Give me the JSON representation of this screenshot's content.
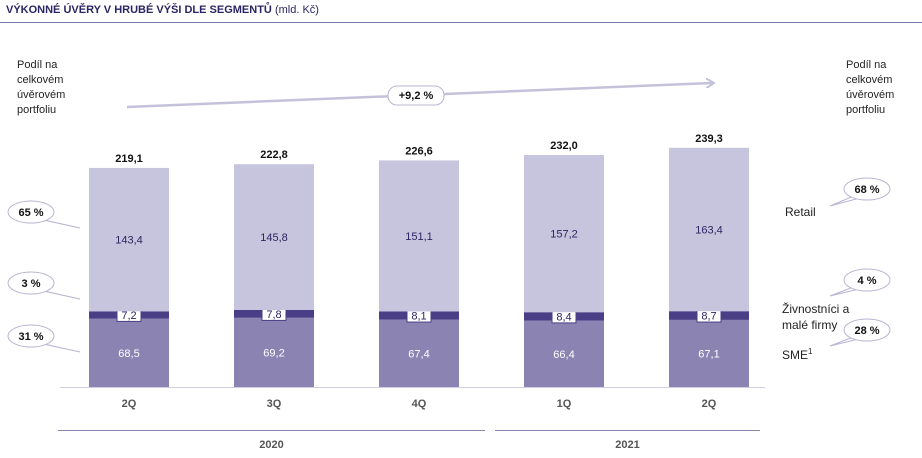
{
  "title": {
    "main": "VÝKONNÉ ÚVĚRY V HRUBÉ VÝŠI DLE SEGMENTŮ",
    "unit": "(mld. Kč)"
  },
  "side_note_left": [
    "Podíl na",
    "celkovém",
    "úvěrovém",
    "portfoliu"
  ],
  "side_note_right": [
    "Podíl na",
    "celkovém",
    "úvěrovém",
    "portfoliu"
  ],
  "growth_label": "+9,2 %",
  "segment_labels": {
    "retail": "Retail",
    "small": [
      "Živnostníci a",
      "malé firmy"
    ],
    "sme": "SME",
    "sme_sup": "1"
  },
  "share_bubbles_left": [
    "65 %",
    "3 %",
    "31 %"
  ],
  "share_bubbles_right": [
    "68 %",
    "4 %",
    "28 %"
  ],
  "colors": {
    "retail": "#c7c4dd",
    "small": "#4a3f86",
    "sme": "#8b84b3",
    "text": "#2b2563",
    "arrow": "#c4c2da"
  },
  "chart_data": {
    "type": "bar",
    "stacked": true,
    "categories": [
      "2Q",
      "3Q",
      "4Q",
      "1Q",
      "2Q"
    ],
    "year_groups": [
      {
        "label": "2020",
        "categories": [
          0,
          1,
          2
        ]
      },
      {
        "label": "2021",
        "categories": [
          3,
          4
        ]
      }
    ],
    "totals": [
      "219,1",
      "222,8",
      "226,6",
      "232,0",
      "239,3"
    ],
    "series": [
      {
        "name": "SME",
        "values": [
          68.5,
          69.2,
          67.4,
          66.4,
          67.1
        ],
        "labels": [
          "68,5",
          "69,2",
          "67,4",
          "66,4",
          "67,1"
        ]
      },
      {
        "name": "Živnostníci a malé firmy",
        "values": [
          7.2,
          7.8,
          8.1,
          8.4,
          8.7
        ],
        "labels": [
          "7,2",
          "7,8",
          "8,1",
          "8,4",
          "8,7"
        ]
      },
      {
        "name": "Retail",
        "values": [
          143.4,
          145.8,
          151.1,
          157.2,
          163.4
        ],
        "labels": [
          "143,4",
          "145,8",
          "151,1",
          "157,2",
          "163,4"
        ]
      }
    ],
    "ylim": [
      0,
      240
    ],
    "grid": false,
    "legend": "right"
  }
}
